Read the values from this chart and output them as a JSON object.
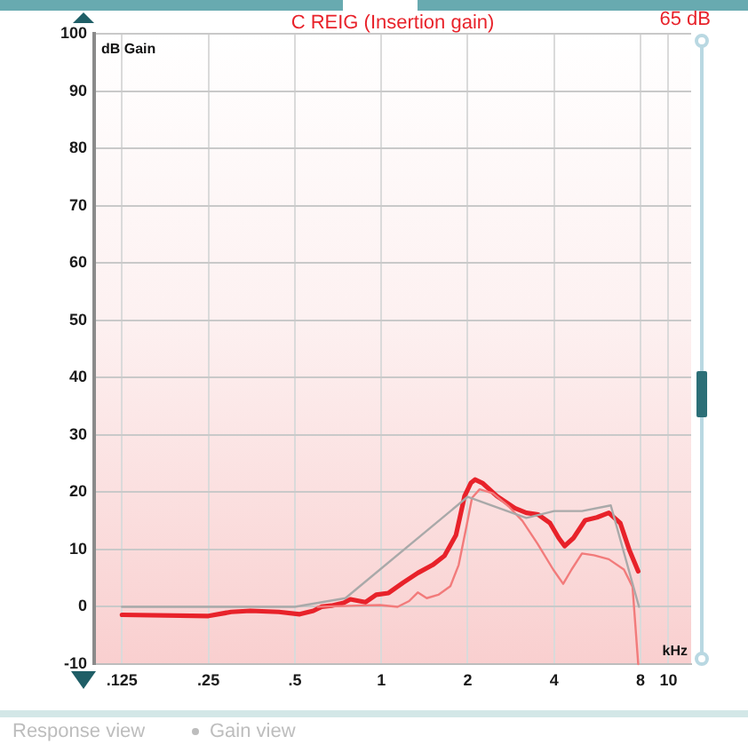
{
  "chart_data": {
    "type": "line",
    "title": "C REIG (Insertion gain)",
    "xlabel": "kHz",
    "ylabel": "dB Gain",
    "log": "x",
    "xlim": [
      0.1,
      12
    ],
    "xticks": [
      {
        "value": 0.125,
        "label": ".125"
      },
      {
        "value": 0.25,
        "label": ".25"
      },
      {
        "value": 0.5,
        "label": ".5"
      },
      1,
      2,
      4,
      8,
      10
    ],
    "ylim": [
      -10,
      100
    ],
    "yticks": [
      -10,
      0,
      10,
      20,
      30,
      40,
      50,
      60,
      70,
      80,
      90,
      100
    ],
    "grid": true,
    "annotations": [
      "65 dB",
      "Response view",
      "Gain view"
    ],
    "series": [
      {
        "color": "#a9a9a9",
        "x": [
          0.125,
          0.5,
          0.75,
          2,
          3.2,
          4,
          5,
          6.3,
          7.9
        ],
        "values": [
          0,
          0,
          1.5,
          19.2,
          15.5,
          16.7,
          16.7,
          17.7,
          0
        ]
      },
      {
        "color": "#f27b7b",
        "x": [
          0.6,
          0.82,
          0.99,
          1.14,
          1.25,
          1.34,
          1.44,
          1.58,
          1.74,
          1.86,
          1.98,
          2.07,
          2.2,
          2.45,
          2.78,
          3.1,
          3.5,
          3.97,
          4.3,
          4.6,
          5.0,
          5.5,
          6.2,
          7.0,
          7.5,
          7.85
        ],
        "values": [
          0,
          0.2,
          0.3,
          0,
          1.0,
          2.5,
          1.5,
          2.1,
          3.6,
          7.3,
          14,
          19,
          20.5,
          19.8,
          17.5,
          15,
          11,
          6.5,
          4.0,
          6.5,
          9.3,
          9,
          8.3,
          6.5,
          3.5,
          -10
        ]
      },
      {
        "color": "#e8222a",
        "x": [
          0.125,
          0.25,
          0.3,
          0.35,
          0.44,
          0.52,
          0.58,
          0.62,
          0.67,
          0.74,
          0.78,
          0.88,
          0.96,
          1.06,
          1.19,
          1.34,
          1.51,
          1.66,
          1.82,
          1.95,
          2.05,
          2.12,
          2.25,
          2.53,
          2.92,
          3.2,
          3.52,
          3.87,
          4.15,
          4.35,
          4.67,
          5.13,
          5.64,
          6.2,
          6.8,
          7.3,
          7.85
        ],
        "values": [
          -1.4,
          -1.6,
          -0.9,
          -0.7,
          -0.9,
          -1.3,
          -0.7,
          0,
          0.2,
          0.7,
          1.3,
          0.8,
          2.1,
          2.4,
          4.2,
          5.9,
          7.3,
          8.9,
          12.5,
          19.3,
          21.6,
          22.2,
          21.6,
          19.3,
          17.2,
          16.4,
          16.1,
          14.6,
          12,
          10.6,
          12,
          15.1,
          15.6,
          16.4,
          14.6,
          10,
          6.2
        ]
      }
    ]
  }
}
